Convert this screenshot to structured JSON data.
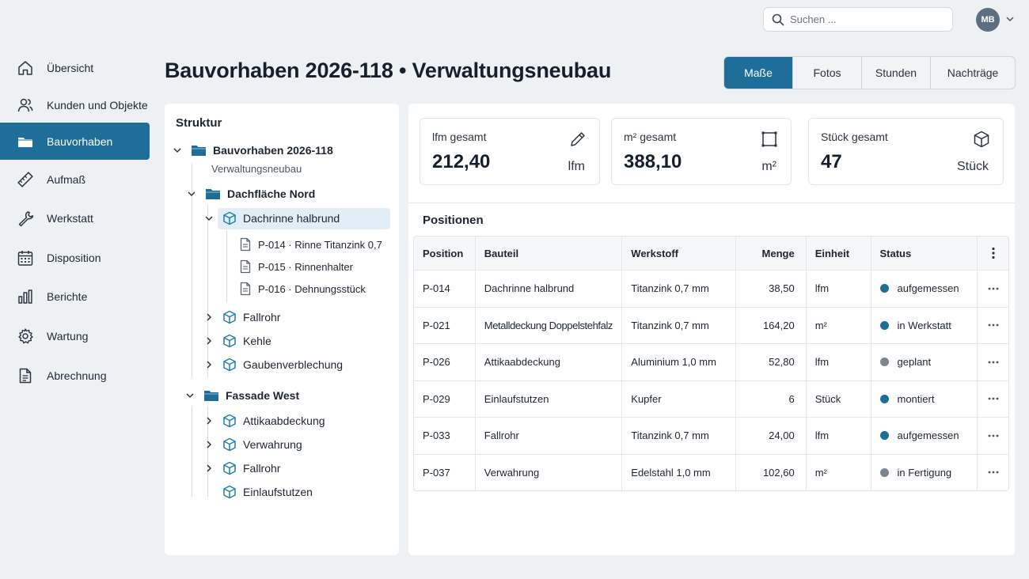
{
  "header": {
    "search_placeholder": "Suchen ...",
    "avatar_initials": "MB"
  },
  "sidebar": {
    "items": [
      {
        "label": "Übersicht",
        "icon": "home-icon"
      },
      {
        "label": "Kunden und Objekte",
        "icon": "users-icon"
      },
      {
        "label": "Bauvorhaben",
        "icon": "folder-icon",
        "active": true
      },
      {
        "label": "Aufmaß",
        "icon": "ruler-icon"
      },
      {
        "label": "Werkstatt",
        "icon": "wrench-icon"
      },
      {
        "label": "Disposition",
        "icon": "calendar-icon"
      },
      {
        "label": "Berichte",
        "icon": "bar-chart-icon"
      },
      {
        "label": "Wartung",
        "icon": "gear-icon"
      },
      {
        "label": "Abrechnung",
        "icon": "document-icon"
      }
    ]
  },
  "page": {
    "title": "Bauvorhaben 2026-118 • Verwaltungsneubau",
    "tabs": [
      "Maße",
      "Fotos",
      "Stunden",
      "Nachträge"
    ],
    "active_tab": "Maße"
  },
  "tree": {
    "title": "Struktur",
    "root": {
      "label": "Bauvorhaben 2026-118",
      "sub": "Verwaltungsneubau"
    },
    "group1": {
      "label": "Dachfläche Nord",
      "selected": "Dachrinne halbrund",
      "docs": [
        "P-014 · Rinne Titanzink 0,7",
        "P-015 · Rinnenhalter",
        "P-016 · Dehnungsstück"
      ],
      "others": [
        "Fallrohr",
        "Kehle",
        "Gaubenverblechung"
      ]
    },
    "group2": {
      "label": "Fassade West",
      "items": [
        "Attikaabdeckung",
        "Verwahrung",
        "Fallrohr",
        "Einlaufstutzen"
      ]
    }
  },
  "stats": [
    {
      "label": "lfm gesamt",
      "value": "212,40",
      "unit": "lfm",
      "icon": "pencil-icon"
    },
    {
      "label": "m² gesamt",
      "value": "388,10",
      "unit": "m²",
      "icon": "area-square-icon"
    },
    {
      "label": "Stück gesamt",
      "value": "47",
      "unit": "Stück",
      "icon": "cube-icon"
    }
  ],
  "positions": {
    "title": "Positionen",
    "columns": [
      "Position",
      "Bauteil",
      "Werkstoff",
      "Menge",
      "Einheit",
      "Status"
    ],
    "rows": [
      {
        "pos": "P-014",
        "bauteil": "Dachrinne halbrund",
        "werkstoff": "Titanzink 0,7 mm",
        "menge": "38,50",
        "einheit": "lfm",
        "status": "aufgemessen",
        "color": "#1f6e99"
      },
      {
        "pos": "P-021",
        "bauteil": "Metalldeckung Doppelstehfalz",
        "werkstoff": "Titanzink 0,7 mm",
        "menge": "164,20",
        "einheit": "m²",
        "status": "in Werkstatt",
        "color": "#1f6e99"
      },
      {
        "pos": "P-026",
        "bauteil": "Attikaabdeckung",
        "werkstoff": "Aluminium 1,0 mm",
        "menge": "52,80",
        "einheit": "lfm",
        "status": "geplant",
        "color": "#7b858f"
      },
      {
        "pos": "P-029",
        "bauteil": "Einlaufstutzen",
        "werkstoff": "Kupfer",
        "menge": "6",
        "einheit": "Stück",
        "status": "montiert",
        "color": "#1f6e99"
      },
      {
        "pos": "P-033",
        "bauteil": "Fallrohr",
        "werkstoff": "Titanzink 0,7 mm",
        "menge": "24,00",
        "einheit": "lfm",
        "status": "aufgemessen",
        "color": "#1f6e99"
      },
      {
        "pos": "P-037",
        "bauteil": "Verwahrung",
        "werkstoff": "Edelstahl 1,0 mm",
        "menge": "102,60",
        "einheit": "m²",
        "status": "in Fertigung",
        "color": "#7b858f"
      }
    ]
  }
}
